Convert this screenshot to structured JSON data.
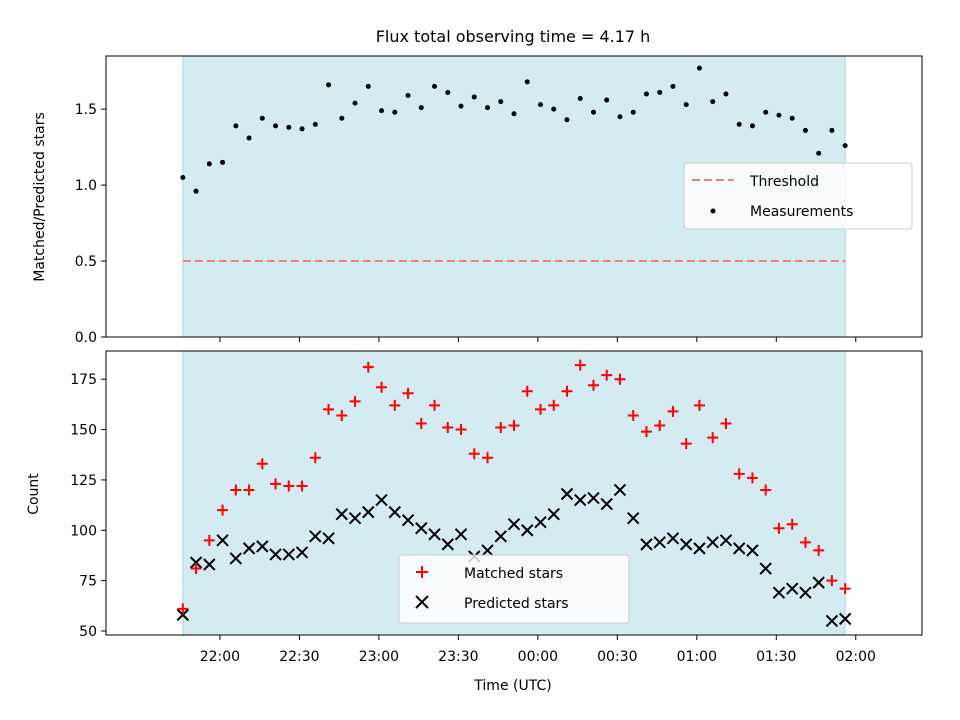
{
  "chart_data": [
    {
      "type": "scatter",
      "title": "Flux total observing time = 4.17 h",
      "xlabel": "",
      "ylabel": "Matched/Predicted stars",
      "ylim": [
        0,
        1.85
      ],
      "yticks": [
        0.0,
        0.5,
        1.0,
        1.5
      ],
      "ytick_labels": [
        "0.0",
        "0.5",
        "1.0",
        "1.5"
      ],
      "xlim_min": [
        -43,
        265
      ],
      "shaded_span_min": [
        -14,
        236
      ],
      "shade_color": "#d4ebf2",
      "legend_placement": "center-right",
      "legend": [
        "Threshold",
        "Measurements"
      ],
      "threshold": {
        "name": "Threshold",
        "value": 0.5,
        "x_min": [
          -14,
          236
        ],
        "color": "#f08080",
        "style": "dashed"
      },
      "series": [
        {
          "name": "Measurements",
          "marker": "dot",
          "color": "#000000",
          "x_min": [
            -14,
            -9,
            -4,
            1,
            6,
            11,
            16,
            21,
            26,
            31,
            36,
            41,
            46,
            51,
            56,
            61,
            66,
            71,
            76,
            81,
            86,
            91,
            96,
            101,
            106,
            111,
            116,
            121,
            126,
            131,
            136,
            141,
            146,
            151,
            156,
            161,
            166,
            171,
            176,
            181,
            186,
            191,
            196,
            201,
            206,
            211,
            216,
            221,
            226,
            231,
            236
          ],
          "y": [
            1.05,
            0.96,
            1.14,
            1.15,
            1.39,
            1.31,
            1.44,
            1.39,
            1.38,
            1.37,
            1.4,
            1.66,
            1.44,
            1.54,
            1.65,
            1.49,
            1.48,
            1.59,
            1.51,
            1.65,
            1.61,
            1.52,
            1.58,
            1.51,
            1.55,
            1.47,
            1.68,
            1.53,
            1.5,
            1.43,
            1.57,
            1.48,
            1.56,
            1.45,
            1.48,
            1.6,
            1.61,
            1.65,
            1.53,
            1.77,
            1.55,
            1.6,
            1.4,
            1.39,
            1.48,
            1.46,
            1.44,
            1.36,
            1.21,
            1.36,
            1.26
          ]
        }
      ]
    },
    {
      "type": "scatter",
      "title": "",
      "xlabel": "Time (UTC)",
      "ylabel": "Count",
      "ylim": [
        48,
        189
      ],
      "yticks": [
        50,
        75,
        100,
        125,
        150,
        175
      ],
      "ytick_labels": [
        "50",
        "75",
        "100",
        "125",
        "150",
        "175"
      ],
      "xlim_min": [
        -43,
        265
      ],
      "xticks_min": [
        0,
        30,
        60,
        90,
        120,
        150,
        180,
        210,
        240
      ],
      "xtick_labels": [
        "22:00",
        "22:30",
        "23:00",
        "23:30",
        "00:00",
        "00:30",
        "01:00",
        "01:30",
        "02:00"
      ],
      "shaded_span_min": [
        -14,
        236
      ],
      "shade_color": "#d4ebf2",
      "legend_placement": "lower-center",
      "legend": [
        "Matched stars",
        "Predicted stars"
      ],
      "series": [
        {
          "name": "Matched stars",
          "marker": "plus",
          "color": "#ff0000",
          "x_min": [
            -14,
            -9,
            -4,
            1,
            6,
            11,
            16,
            21,
            26,
            31,
            36,
            41,
            46,
            51,
            56,
            61,
            66,
            71,
            76,
            81,
            86,
            91,
            96,
            101,
            106,
            111,
            116,
            121,
            126,
            131,
            136,
            141,
            146,
            151,
            156,
            161,
            166,
            171,
            176,
            181,
            186,
            191,
            196,
            201,
            206,
            211,
            216,
            221,
            226,
            231,
            236
          ],
          "y": [
            61,
            81,
            95,
            110,
            120,
            120,
            133,
            123,
            122,
            122,
            136,
            160,
            157,
            164,
            181,
            171,
            162,
            168,
            153,
            162,
            151,
            150,
            138,
            136,
            151,
            152,
            169,
            160,
            162,
            169,
            182,
            172,
            177,
            175,
            157,
            149,
            152,
            159,
            143,
            162,
            146,
            153,
            128,
            126,
            120,
            101,
            103,
            94,
            90,
            75,
            71
          ]
        },
        {
          "name": "Predicted stars",
          "marker": "x",
          "color": "#000000",
          "x_min": [
            -14,
            -9,
            -4,
            1,
            6,
            11,
            16,
            21,
            26,
            31,
            36,
            41,
            46,
            51,
            56,
            61,
            66,
            71,
            76,
            81,
            86,
            91,
            96,
            101,
            106,
            111,
            116,
            121,
            126,
            131,
            136,
            141,
            146,
            151,
            156,
            161,
            166,
            171,
            176,
            181,
            186,
            191,
            196,
            201,
            206,
            211,
            216,
            221,
            226,
            231,
            236
          ],
          "y": [
            58,
            84,
            83,
            95,
            86,
            91,
            92,
            88,
            88,
            89,
            97,
            96,
            108,
            106,
            109,
            115,
            109,
            105,
            101,
            98,
            93,
            98,
            87,
            90,
            97,
            103,
            100,
            104,
            108,
            118,
            115,
            116,
            113,
            120,
            106,
            93,
            94,
            96,
            93,
            91,
            94,
            95,
            91,
            90,
            81,
            69,
            71,
            69,
            74,
            55,
            56
          ]
        }
      ]
    }
  ]
}
